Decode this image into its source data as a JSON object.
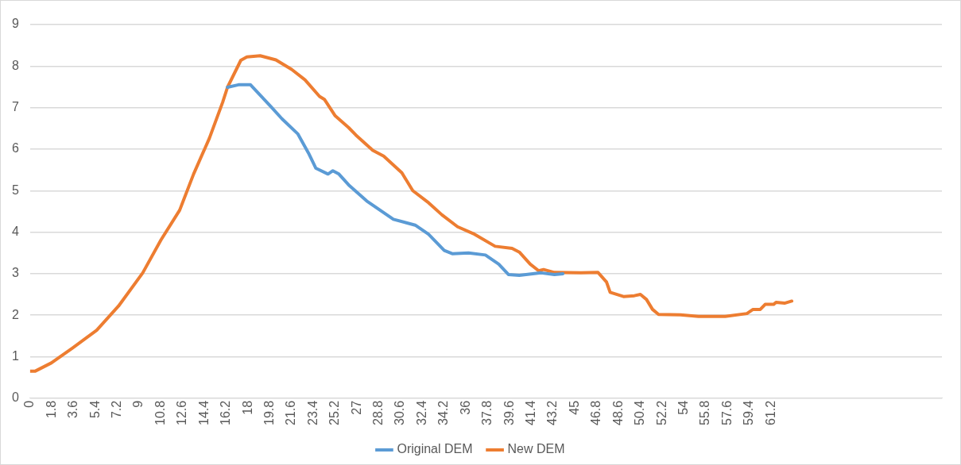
{
  "chart_data": {
    "type": "line",
    "xlim": [
      0,
      75.3
    ],
    "ylim": [
      0,
      9
    ],
    "yticks": [
      0,
      1,
      2,
      3,
      4,
      5,
      6,
      7,
      8,
      9
    ],
    "xticks": [
      0,
      1.8,
      3.6,
      5.4,
      7.2,
      9,
      10.8,
      12.6,
      14.4,
      16.2,
      18,
      19.8,
      21.6,
      23.4,
      25.2,
      27,
      28.8,
      30.6,
      32.4,
      34.2,
      36,
      37.8,
      39.6,
      41.4,
      43.2,
      45,
      46.8,
      48.6,
      50.4,
      52.2,
      54,
      55.8,
      57.6,
      59.4,
      61.2
    ],
    "grid": "y",
    "legend": "bottom",
    "marker": "none",
    "line_style": "solid",
    "series": [
      {
        "name": "Original DEM",
        "color": "#5b9bd5",
        "x": [
          16.3,
          17.2,
          18.2,
          19.9,
          20.8,
          22.1,
          23.0,
          23.6,
          24.6,
          25.0,
          25.5,
          26.3,
          27.8,
          30.0,
          31.8,
          32.9,
          34.2,
          34.9,
          36.2,
          37.6,
          38.7,
          39.5,
          40.4,
          42.2,
          43.3,
          44.0
        ],
        "values": [
          7.49,
          7.55,
          7.55,
          7.02,
          6.73,
          6.37,
          5.9,
          5.54,
          5.4,
          5.48,
          5.4,
          5.14,
          4.75,
          4.31,
          4.17,
          3.95,
          3.56,
          3.48,
          3.5,
          3.45,
          3.23,
          2.98,
          2.96,
          3.02,
          2.98,
          3.0
        ]
      },
      {
        "name": "New DEM",
        "color": "#ed7d31",
        "x": [
          0,
          0.4,
          1.75,
          3.5,
          5.5,
          7.3,
          9.3,
          10.8,
          12.35,
          13.5,
          14.8,
          15.9,
          16.3,
          17.4,
          17.9,
          19.0,
          20.3,
          21.6,
          22.7,
          23.9,
          24.3,
          25.2,
          26.3,
          26.9,
          28.3,
          29.2,
          30.7,
          31.6,
          32.9,
          34.0,
          35.3,
          36.7,
          38.4,
          39.8,
          40.4,
          41.3,
          42.0,
          42.4,
          43.3,
          45.5,
          46.9,
          47.6,
          47.9,
          49.0,
          49.9,
          50.4,
          50.9,
          51.4,
          51.9,
          53.7,
          55.2,
          57.4,
          59.2,
          59.7,
          60.3,
          60.7,
          61.4,
          61.6,
          62.3,
          62.9
        ],
        "values": [
          0.65,
          0.65,
          0.85,
          1.21,
          1.64,
          2.22,
          3.02,
          3.81,
          4.53,
          5.4,
          6.26,
          7.13,
          7.49,
          8.14,
          8.22,
          8.25,
          8.15,
          7.92,
          7.67,
          7.27,
          7.2,
          6.8,
          6.52,
          6.34,
          5.97,
          5.83,
          5.43,
          5.0,
          4.71,
          4.42,
          4.13,
          3.95,
          3.66,
          3.61,
          3.52,
          3.23,
          3.07,
          3.1,
          3.03,
          3.02,
          3.03,
          2.8,
          2.55,
          2.45,
          2.47,
          2.5,
          2.38,
          2.14,
          2.02,
          2.01,
          1.97,
          1.97,
          2.04,
          2.14,
          2.14,
          2.26,
          2.26,
          2.31,
          2.29,
          2.34
        ]
      }
    ]
  }
}
